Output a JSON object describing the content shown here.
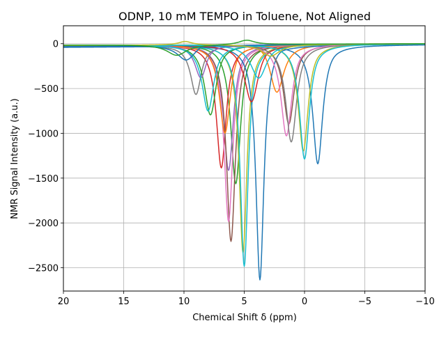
{
  "chart_data": {
    "type": "line",
    "title": "ODNP, 10 mM TEMPO in Toluene, Not Aligned",
    "xlabel": "Chemical Shift δ (ppm)",
    "ylabel": "NMR Signal Intensity (a.u.)",
    "xlim": [
      20,
      -10
    ],
    "ylim": [
      -2760,
      200
    ],
    "x_ticks": [
      20,
      15,
      10,
      5,
      0,
      -5,
      -10
    ],
    "x_tick_labels": [
      "20",
      "15",
      "10",
      "5",
      "0",
      "−5",
      "−10"
    ],
    "y_ticks": [
      0,
      -500,
      -1000,
      -1500,
      -2000,
      -2500
    ],
    "y_tick_labels": [
      "0",
      "−500",
      "−1000",
      "−1500",
      "−2000",
      "−2500"
    ],
    "grid": true,
    "legend": "none",
    "colors": [
      "#1f77b4",
      "#ff7f0e",
      "#2ca02c",
      "#d62728",
      "#9467bd",
      "#8c564b",
      "#e377c2",
      "#7f7f7f",
      "#bcbd22",
      "#17becf"
    ],
    "series": [
      {
        "color": "#1f77b4",
        "peaks": [
          [
            -1.1,
            -1330,
            0.5
          ]
        ],
        "bumps": [
          [
            -2.2,
            30,
            0.7
          ]
        ],
        "baseline": [
          -40,
          -10
        ]
      },
      {
        "color": "#ff7f0e",
        "peaks": [
          [
            2.3,
            -550,
            0.7
          ]
        ],
        "bumps": [
          [
            3.4,
            50,
            0.8
          ]
        ],
        "baseline": [
          -20,
          0
        ]
      },
      {
        "color": "#2ca02c",
        "peaks": [
          [
            5.7,
            -1580,
            0.5
          ]
        ],
        "bumps": [
          [
            5.0,
            60,
            0.6
          ]
        ],
        "baseline": [
          -15,
          0
        ]
      },
      {
        "color": "#d62728",
        "peaks": [
          [
            6.9,
            -1400,
            0.5
          ]
        ],
        "bumps": [
          [
            6.3,
            50,
            0.6
          ]
        ],
        "baseline": [
          -20,
          0
        ]
      },
      {
        "color": "#9467bd",
        "peaks": [
          [
            6.3,
            -1420,
            0.5
          ]
        ],
        "bumps": [
          [
            5.5,
            40,
            0.6
          ]
        ],
        "baseline": [
          -15,
          0
        ]
      },
      {
        "color": "#8c564b",
        "peaks": [
          [
            6.1,
            -2210,
            0.45
          ]
        ],
        "bumps": [
          [
            5.3,
            40,
            0.6
          ]
        ],
        "baseline": [
          -20,
          0
        ]
      },
      {
        "color": "#e377c2",
        "peaks": [
          [
            6.3,
            -1990,
            0.45
          ]
        ],
        "bumps": [
          [
            5.6,
            40,
            0.6
          ]
        ],
        "baseline": [
          -20,
          0
        ]
      },
      {
        "color": "#7f7f7f",
        "peaks": [
          [
            9.0,
            -560,
            0.55
          ]
        ],
        "bumps": [
          [
            8.3,
            30,
            0.6
          ]
        ],
        "baseline": [
          -30,
          0
        ]
      },
      {
        "color": "#bcbd22",
        "peaks": [
          [
            5.1,
            -2350,
            0.4
          ]
        ],
        "bumps": [
          [
            4.6,
            40,
            0.6
          ]
        ],
        "baseline": [
          -20,
          0
        ]
      },
      {
        "color": "#17becf",
        "peaks": [
          [
            5.0,
            -2490,
            0.4
          ]
        ],
        "bumps": [
          [
            4.3,
            40,
            0.6
          ]
        ],
        "baseline": [
          -25,
          0
        ]
      },
      {
        "color": "#1f77b4",
        "peaks": [
          [
            3.7,
            -2630,
            0.4
          ]
        ],
        "bumps": [
          [
            2.2,
            60,
            0.8
          ]
        ],
        "baseline": [
          -35,
          -5
        ]
      },
      {
        "color": "#ff7f0e",
        "peaks": [
          [
            6.6,
            -1000,
            0.55
          ]
        ],
        "bumps": [
          [
            5.6,
            50,
            0.6
          ]
        ],
        "baseline": [
          -20,
          0
        ]
      },
      {
        "color": "#2ca02c",
        "peaks": [
          [
            7.8,
            -800,
            0.6
          ]
        ],
        "bumps": [
          [
            7.0,
            40,
            0.7
          ]
        ],
        "baseline": [
          -20,
          0
        ]
      },
      {
        "color": "#d62728",
        "peaks": [
          [
            4.4,
            -650,
            0.7
          ]
        ],
        "bumps": [
          [
            3.3,
            40,
            0.7
          ]
        ],
        "baseline": [
          -20,
          0
        ]
      },
      {
        "color": "#9467bd",
        "peaks": [
          [
            8.6,
            -380,
            0.6
          ]
        ],
        "bumps": [
          [
            7.9,
            30,
            0.6
          ]
        ],
        "baseline": [
          -20,
          0
        ]
      },
      {
        "color": "#8c564b",
        "peaks": [
          [
            1.3,
            -900,
            0.55
          ]
        ],
        "bumps": [
          [
            0.5,
            30,
            0.6
          ]
        ],
        "baseline": [
          -20,
          0
        ]
      },
      {
        "color": "#e377c2",
        "peaks": [
          [
            1.5,
            -1030,
            0.55
          ]
        ],
        "bumps": [
          [
            0.6,
            30,
            0.6
          ]
        ],
        "baseline": [
          -20,
          0
        ]
      },
      {
        "color": "#7f7f7f",
        "peaks": [
          [
            1.1,
            -1100,
            0.55
          ]
        ],
        "bumps": [
          [
            0.3,
            30,
            0.6
          ]
        ],
        "baseline": [
          -20,
          0
        ]
      },
      {
        "color": "#bcbd22",
        "peaks": [
          [
            0.1,
            -1200,
            0.5
          ]
        ],
        "bumps": [
          [
            -0.8,
            30,
            0.6
          ]
        ],
        "baseline": [
          -20,
          0
        ]
      },
      {
        "color": "#17becf",
        "peaks": [
          [
            0.0,
            -1290,
            0.5
          ]
        ],
        "bumps": [
          [
            -0.9,
            30,
            0.6
          ]
        ],
        "baseline": [
          -20,
          0
        ]
      },
      {
        "color": "#17becf",
        "peaks": [
          [
            8.0,
            -750,
            0.6
          ]
        ],
        "bumps": [
          [
            7.2,
            30,
            0.6
          ]
        ],
        "baseline": [
          -20,
          0
        ]
      },
      {
        "color": "#17becf",
        "peaks": [
          [
            3.8,
            -380,
            0.8
          ]
        ],
        "bumps": [
          [
            2.6,
            20,
            0.7
          ]
        ],
        "baseline": [
          -20,
          0
        ]
      },
      {
        "color": "#1f77b4",
        "peaks": [
          [
            9.8,
            -170,
            0.9
          ]
        ],
        "bumps": [
          [
            8.4,
            40,
            0.7
          ]
        ],
        "baseline": [
          -30,
          0
        ]
      },
      {
        "color": "#bcbd22",
        "peaks": [
          [
            2.8,
            -130,
            0.9
          ]
        ],
        "bumps": [
          [
            9.9,
            40,
            0.7
          ]
        ],
        "baseline": [
          -20,
          0
        ]
      },
      {
        "color": "#2ca02c",
        "peaks": [
          [
            10.6,
            -120,
            1.0
          ]
        ],
        "bumps": [
          [
            4.8,
            50,
            0.8
          ]
        ],
        "baseline": [
          -15,
          0
        ]
      }
    ]
  }
}
